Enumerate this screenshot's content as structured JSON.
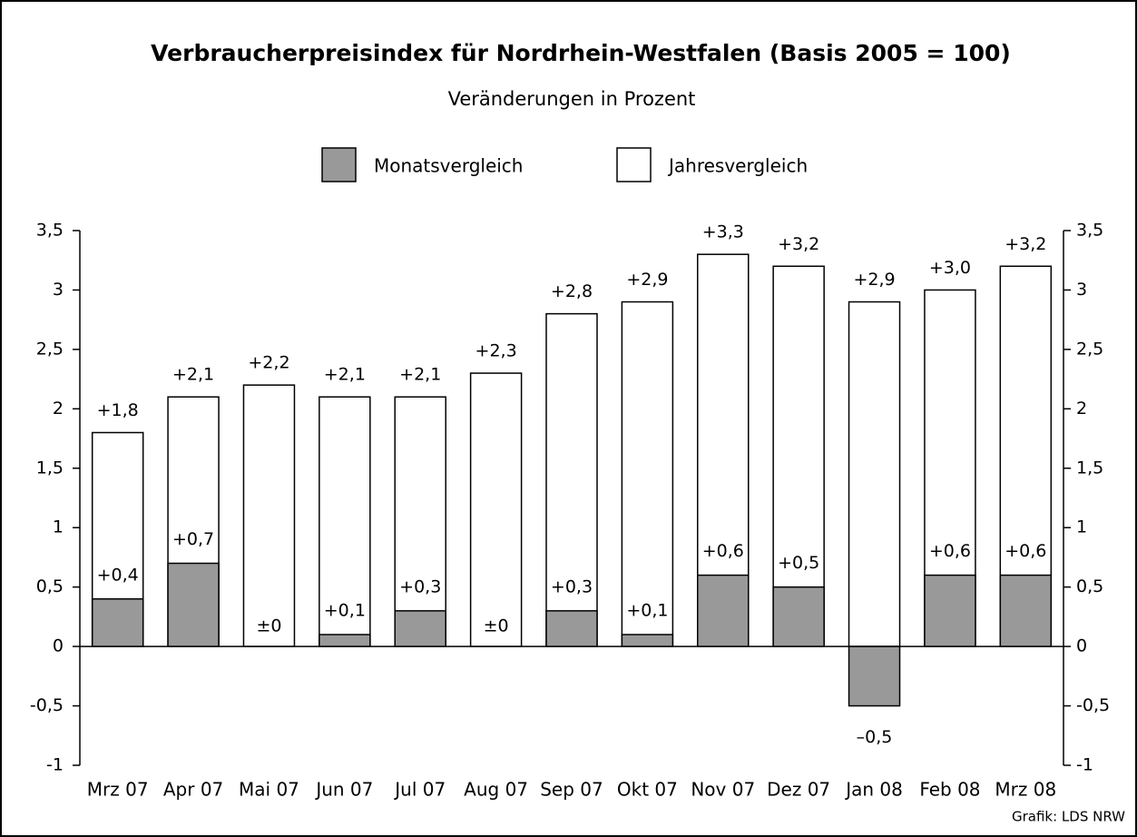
{
  "chart_data": {
    "type": "bar",
    "title": "Verbraucherpreisindex für Nordrhein-Westfalen (Basis 2005 = 100)",
    "subtitle": "Veränderungen in Prozent",
    "source": "Grafik: LDS NRW",
    "categories": [
      "Mrz 07",
      "Apr 07",
      "Mai 07",
      "Jun 07",
      "Jul 07",
      "Aug 07",
      "Sep 07",
      "Okt 07",
      "Nov 07",
      "Dez 07",
      "Jan 08",
      "Feb 08",
      "Mrz 08"
    ],
    "series": [
      {
        "name": "Monatsvergleich",
        "color": "#999999",
        "values": [
          0.4,
          0.7,
          0,
          0.1,
          0.3,
          0,
          0.3,
          0.1,
          0.6,
          0.5,
          -0.5,
          0.6,
          0.6
        ],
        "value_labels": [
          "+0,4",
          "+0,7",
          "±0",
          "+0,1",
          "+0,3",
          "±0",
          "+0,3",
          "+0,1",
          "+0,6",
          "+0,5",
          "–0,5",
          "+0,6",
          "+0,6"
        ]
      },
      {
        "name": "Jahresvergleich",
        "color": "#ffffff",
        "values": [
          1.8,
          2.1,
          2.2,
          2.1,
          2.1,
          2.3,
          2.8,
          2.9,
          3.3,
          3.2,
          2.9,
          3.0,
          3.2
        ],
        "value_labels": [
          "+1,8",
          "+2,1",
          "+2,2",
          "+2,1",
          "+2,1",
          "+2,3",
          "+2,8",
          "+2,9",
          "+3,3",
          "+3,2",
          "+2,9",
          "+3,0",
          "+3,2"
        ]
      }
    ],
    "ylim": [
      -1,
      3.5
    ],
    "yticks": [
      -1,
      {
        "value": -0.5,
        "label": "-0,5"
      },
      0,
      {
        "value": 0.5,
        "label": "0,5"
      },
      1,
      {
        "value": 1.5,
        "label": "1,5"
      },
      2,
      {
        "value": 2.5,
        "label": "2,5"
      },
      3,
      {
        "value": 3.5,
        "label": "3,5"
      }
    ]
  }
}
